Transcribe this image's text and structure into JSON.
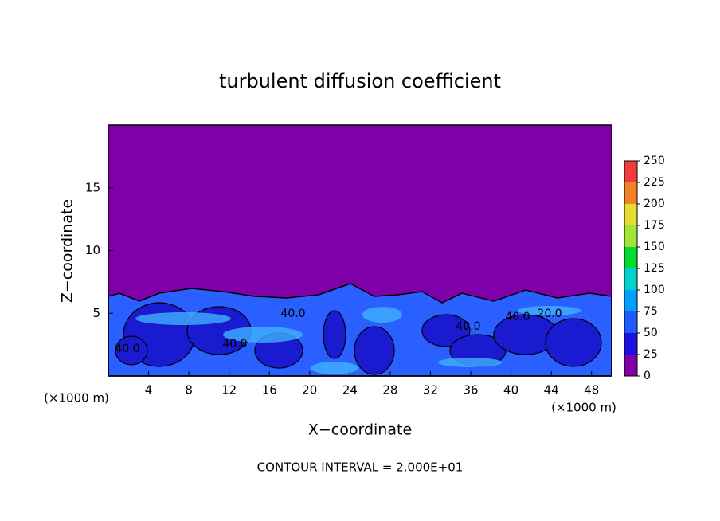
{
  "chart_data": {
    "type": "contour",
    "title": "turbulent diffusion coefficient",
    "x_label": "X−coordinate",
    "y_label": "Z−coordinate",
    "x_unit": "(×1000 m)",
    "footer": "CONTOUR INTERVAL = 2.000E+01",
    "xlim": [
      0,
      50
    ],
    "xticks": [
      4,
      8,
      12,
      16,
      20,
      24,
      28,
      32,
      36,
      40,
      44,
      48
    ],
    "ylim": [
      0,
      20
    ],
    "yticks": [
      5,
      10,
      15
    ],
    "colorbar": {
      "lim": [
        0,
        250
      ],
      "ticks": [
        0,
        25,
        50,
        75,
        100,
        125,
        150,
        175,
        200,
        225,
        250
      ],
      "colors": [
        "#7f00a8",
        "#1e10e0",
        "#1e5aff",
        "#00a0ff",
        "#00d2c8",
        "#00dc32",
        "#a0e632",
        "#e6dc32",
        "#f08228",
        "#f03c3c"
      ]
    },
    "field_color": "#7f00a8",
    "contour_labels": [
      "40.0",
      "40.0",
      "40.0",
      "40.0",
      "40.0",
      "20.0"
    ]
  }
}
